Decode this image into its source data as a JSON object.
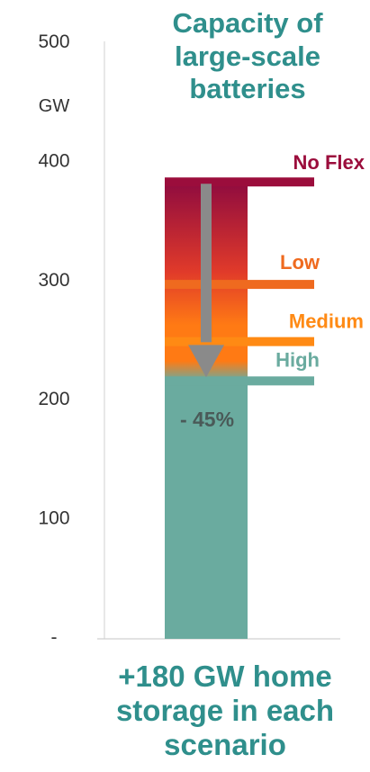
{
  "chart_data": {
    "type": "bar",
    "title_lines": [
      "Capacity of",
      "large-scale",
      "batteries"
    ],
    "unit_label": "GW",
    "subtitle_lines": [
      "+180 GW home",
      "storage in each",
      "scenario"
    ],
    "ylim": [
      0,
      500
    ],
    "y_ticks": [
      {
        "value": 500,
        "label": "500"
      },
      {
        "value": 400,
        "label": "400"
      },
      {
        "value": 300,
        "label": "300"
      },
      {
        "value": 200,
        "label": "200"
      },
      {
        "value": 100,
        "label": "100"
      },
      {
        "value": 0,
        "label": "-"
      }
    ],
    "grid": false,
    "bar_base_value": 215,
    "bar_top_value": 382,
    "scenarios": [
      {
        "name": "No Flex",
        "value": 382,
        "color": "#9b0d3c"
      },
      {
        "name": "Low",
        "value": 296,
        "color": "#ef6a1f"
      },
      {
        "name": "Medium",
        "value": 248,
        "color": "#ff8a14"
      },
      {
        "name": "High",
        "value": 215,
        "color": "#6aab9f"
      }
    ],
    "change_label": "- 45%",
    "colors": {
      "top": "#8f0b3f",
      "upper_mid": "#e03a2a",
      "orange": "#ff7a14",
      "base": "#6aab9f",
      "arrow": "#8a8a8a",
      "axis_text": "#333333",
      "title": "#2f8f8c",
      "change_label": "#4a5a58"
    }
  }
}
